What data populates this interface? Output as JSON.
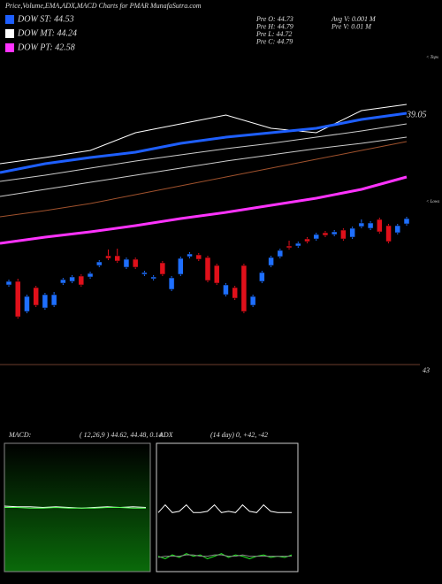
{
  "header": {
    "title": "Price,Volume,EMA,ADX,MACD Charts for PMAR MunafaSutra.com"
  },
  "legend": [
    {
      "label": "DOW ST: 44.53",
      "color": "#1e5fff"
    },
    {
      "label": "DOW MT: 44.24",
      "color": "#ffffff"
    },
    {
      "label": "DOW PT: 42.58",
      "color": "#ff33ff"
    }
  ],
  "quote": [
    "Pre  O: 44.73",
    "Pre  H: 44.79",
    "Pre  L: 44.72",
    "Pre  C: 44.79"
  ],
  "volume": [
    "Avg  V: 0.001 M",
    "Pre   V: 0.01 M"
  ],
  "chart_data": {
    "type": "candlestick",
    "ylim": [
      43,
      46.5
    ],
    "yticks": [
      43
    ],
    "up_color": "#1e6fff",
    "down_color": "#e0101a",
    "annotations": {
      "ema_label": "39.05",
      "tops": "< Tops",
      "lows": "< Lows"
    },
    "candles": [
      {
        "o": 43.9,
        "h": 43.96,
        "l": 43.88,
        "c": 43.94
      },
      {
        "o": 43.94,
        "h": 43.97,
        "l": 43.52,
        "c": 43.54
      },
      {
        "o": 43.6,
        "h": 43.79,
        "l": 43.58,
        "c": 43.77
      },
      {
        "o": 43.87,
        "h": 43.89,
        "l": 43.65,
        "c": 43.67
      },
      {
        "o": 43.64,
        "h": 43.81,
        "l": 43.62,
        "c": 43.79
      },
      {
        "o": 43.67,
        "h": 43.82,
        "l": 43.65,
        "c": 43.79
      },
      {
        "o": 43.92,
        "h": 43.98,
        "l": 43.9,
        "c": 43.96
      },
      {
        "o": 43.94,
        "h": 44.01,
        "l": 43.92,
        "c": 43.99
      },
      {
        "o": 44.0,
        "h": 44.02,
        "l": 43.88,
        "c": 43.9
      },
      {
        "o": 43.99,
        "h": 44.05,
        "l": 43.97,
        "c": 44.03
      },
      {
        "o": 44.12,
        "h": 44.18,
        "l": 44.1,
        "c": 44.16
      },
      {
        "o": 44.23,
        "h": 44.3,
        "l": 44.18,
        "c": 44.2
      },
      {
        "o": 44.23,
        "h": 44.31,
        "l": 44.15,
        "c": 44.17
      },
      {
        "o": 44.1,
        "h": 44.21,
        "l": 44.08,
        "c": 44.19
      },
      {
        "o": 44.19,
        "h": 44.21,
        "l": 44.08,
        "c": 44.1
      },
      {
        "o": 44.02,
        "h": 44.06,
        "l": 44.0,
        "c": 44.04
      },
      {
        "o": 43.97,
        "h": 44.01,
        "l": 43.95,
        "c": 43.99
      },
      {
        "o": 44.15,
        "h": 44.17,
        "l": 44.0,
        "c": 44.02
      },
      {
        "o": 43.85,
        "h": 44.0,
        "l": 43.83,
        "c": 43.98
      },
      {
        "o": 44.02,
        "h": 44.22,
        "l": 44.0,
        "c": 44.2
      },
      {
        "o": 44.22,
        "h": 44.27,
        "l": 44.2,
        "c": 44.25
      },
      {
        "o": 44.24,
        "h": 44.26,
        "l": 44.17,
        "c": 44.19
      },
      {
        "o": 44.21,
        "h": 44.23,
        "l": 43.93,
        "c": 43.95
      },
      {
        "o": 44.12,
        "h": 44.14,
        "l": 43.9,
        "c": 43.92
      },
      {
        "o": 43.79,
        "h": 43.92,
        "l": 43.77,
        "c": 43.9
      },
      {
        "o": 43.87,
        "h": 43.89,
        "l": 43.73,
        "c": 43.75
      },
      {
        "o": 44.12,
        "h": 44.14,
        "l": 43.58,
        "c": 43.6
      },
      {
        "o": 43.67,
        "h": 43.79,
        "l": 43.65,
        "c": 43.77
      },
      {
        "o": 43.94,
        "h": 44.06,
        "l": 43.92,
        "c": 44.04
      },
      {
        "o": 44.12,
        "h": 44.23,
        "l": 44.1,
        "c": 44.21
      },
      {
        "o": 44.22,
        "h": 44.31,
        "l": 44.2,
        "c": 44.29
      },
      {
        "o": 44.34,
        "h": 44.4,
        "l": 44.3,
        "c": 44.32
      },
      {
        "o": 44.34,
        "h": 44.39,
        "l": 44.32,
        "c": 44.37
      },
      {
        "o": 44.42,
        "h": 44.44,
        "l": 44.37,
        "c": 44.39
      },
      {
        "o": 44.42,
        "h": 44.49,
        "l": 44.4,
        "c": 44.47
      },
      {
        "o": 44.49,
        "h": 44.51,
        "l": 44.44,
        "c": 44.46
      },
      {
        "o": 44.47,
        "h": 44.52,
        "l": 44.45,
        "c": 44.5
      },
      {
        "o": 44.52,
        "h": 44.54,
        "l": 44.4,
        "c": 44.42
      },
      {
        "o": 44.44,
        "h": 44.56,
        "l": 44.42,
        "c": 44.54
      },
      {
        "o": 44.56,
        "h": 44.64,
        "l": 44.54,
        "c": 44.6
      },
      {
        "o": 44.54,
        "h": 44.62,
        "l": 44.52,
        "c": 44.6
      },
      {
        "o": 44.64,
        "h": 44.66,
        "l": 44.48,
        "c": 44.5
      },
      {
        "o": 44.57,
        "h": 44.59,
        "l": 44.37,
        "c": 44.39
      },
      {
        "o": 44.49,
        "h": 44.59,
        "l": 44.47,
        "c": 44.57
      },
      {
        "o": 44.59,
        "h": 44.67,
        "l": 44.57,
        "c": 44.65
      }
    ],
    "series": [
      {
        "color": "#ffffff",
        "width": 1,
        "values": [
          45.27,
          45.34,
          45.42,
          45.62,
          45.72,
          45.82,
          45.67,
          45.62,
          45.87,
          45.94
        ]
      },
      {
        "color": "#1e5fff",
        "width": 3,
        "values": [
          45.17,
          45.27,
          45.34,
          45.4,
          45.5,
          45.57,
          45.62,
          45.67,
          45.77,
          45.84
        ]
      },
      {
        "color": "#cccccc",
        "width": 1,
        "values": [
          45.07,
          45.14,
          45.22,
          45.3,
          45.37,
          45.44,
          45.5,
          45.57,
          45.64,
          45.72
        ]
      },
      {
        "color": "#cccccc",
        "width": 1,
        "values": [
          44.9,
          44.98,
          45.06,
          45.14,
          45.22,
          45.3,
          45.37,
          45.44,
          45.5,
          45.57
        ]
      },
      {
        "color": "#a0522d",
        "width": 1,
        "values": [
          44.67,
          44.74,
          44.82,
          44.92,
          45.02,
          45.12,
          45.22,
          45.32,
          45.42,
          45.52
        ]
      },
      {
        "color": "#ff33ff",
        "width": 3,
        "values": [
          44.37,
          44.44,
          44.5,
          44.57,
          44.65,
          44.72,
          44.8,
          44.88,
          44.98,
          45.12
        ]
      }
    ]
  },
  "macd": {
    "title": "MACD:",
    "params": "( 12,26,9 ) 44.62, 44.48, 0.14",
    "ylim": [
      -1,
      1
    ],
    "series": [
      {
        "color": "#ffffff",
        "values": [
          0.02,
          0.01,
          0.01,
          0.0,
          0.01,
          0.0,
          -0.01,
          0.0,
          0.01,
          0.0,
          0.01,
          0.0
        ]
      },
      {
        "color": "#55ff55",
        "values": [
          0.0,
          0.0,
          -0.01,
          -0.01,
          0.0,
          -0.01,
          -0.01,
          -0.01,
          0.0,
          0.0,
          -0.01,
          -0.01
        ]
      }
    ]
  },
  "adx": {
    "title": "ADX",
    "params": "(14 day) 0, +42, -42",
    "ylim": [
      0,
      100
    ],
    "series": [
      {
        "color": "#ffffff",
        "values": [
          46,
          52,
          46,
          47,
          52,
          46,
          46,
          47,
          52,
          46,
          47,
          46,
          52,
          47,
          46,
          52,
          47,
          46,
          46,
          46
        ]
      },
      {
        "color": "#22ee22",
        "values": [
          12,
          10,
          13,
          11,
          14,
          12,
          13,
          10,
          12,
          14,
          11,
          13,
          12,
          10,
          12,
          13,
          11,
          12,
          11,
          13
        ]
      },
      {
        "color": "#888888",
        "values": [
          11,
          12,
          12,
          12,
          13,
          13,
          12,
          12,
          13,
          13,
          12,
          12,
          13,
          12,
          12,
          12,
          12,
          12,
          12,
          12
        ]
      }
    ]
  }
}
